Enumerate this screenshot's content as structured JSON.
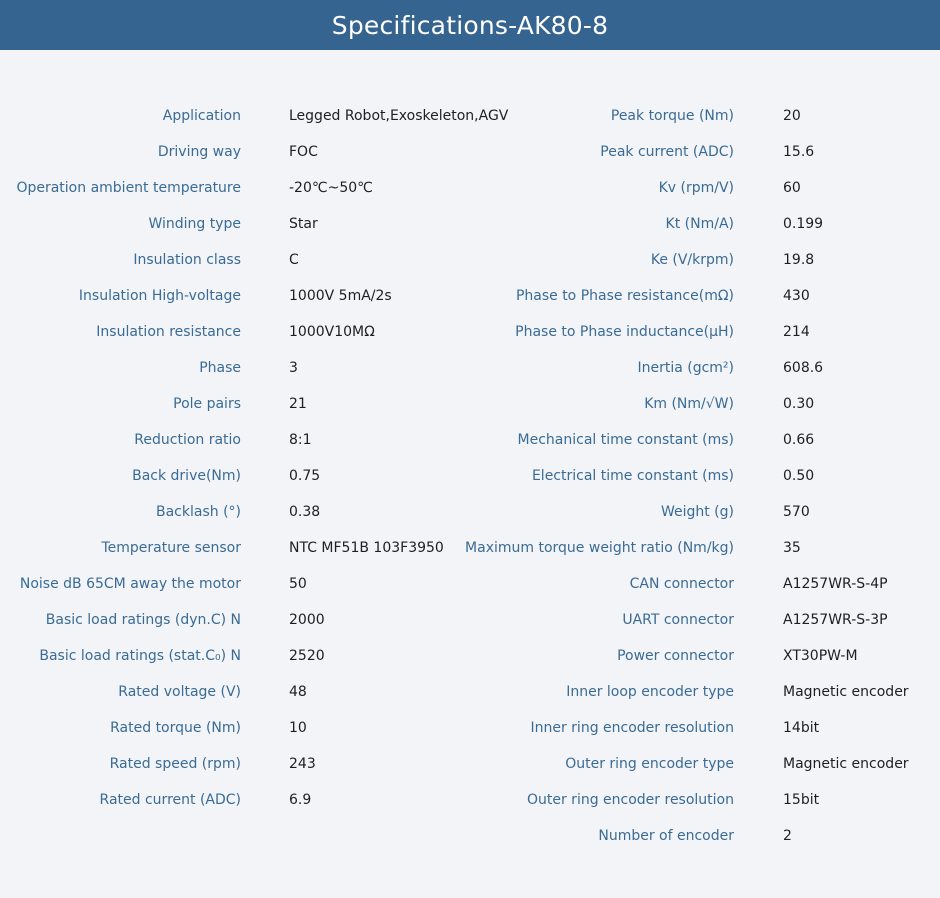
{
  "title": "Specifications-AK80-8",
  "left_specs": [
    {
      "label": "Application",
      "value": "Legged Robot,Exoskeleton,AGV"
    },
    {
      "label": "Driving way",
      "value": "FOC"
    },
    {
      "label": "Operation ambient temperature",
      "value": "-20℃~50℃"
    },
    {
      "label": "Winding type",
      "value": "Star"
    },
    {
      "label": "Insulation class",
      "value": "C"
    },
    {
      "label": "Insulation High-voltage",
      "value": "1000V 5mA/2s"
    },
    {
      "label": "Insulation resistance",
      "value": "1000V10MΩ"
    },
    {
      "label": "Phase",
      "value": "3"
    },
    {
      "label": "Pole pairs",
      "value": "21"
    },
    {
      "label": "Reduction ratio",
      "value": "8:1"
    },
    {
      "label": "Back drive(Nm)",
      "value": "0.75"
    },
    {
      "label": "Backlash (°)",
      "value": "0.38"
    },
    {
      "label": "Temperature sensor",
      "value": "NTC MF51B 103F3950"
    },
    {
      "label": "Noise dB 65CM away the motor",
      "value": "50"
    },
    {
      "label": "Basic load ratings (dyn.C) N",
      "value": "2000"
    },
    {
      "label": "Basic load ratings (stat.C₀) N",
      "value": "2520"
    },
    {
      "label": "Rated voltage (V)",
      "value": "48"
    },
    {
      "label": "Rated torque (Nm)",
      "value": "10"
    },
    {
      "label": "Rated speed (rpm)",
      "value": "243"
    },
    {
      "label": "Rated current (ADC)",
      "value": "6.9"
    }
  ],
  "right_specs": [
    {
      "label": "Peak torque (Nm)",
      "value": "20"
    },
    {
      "label": "Peak current (ADC)",
      "value": "15.6"
    },
    {
      "label": "Kv (rpm/V)",
      "value": "60"
    },
    {
      "label": "Kt (Nm/A)",
      "value": "0.199"
    },
    {
      "label": "Ke (V/krpm)",
      "value": "19.8"
    },
    {
      "label": "Phase to Phase resistance(mΩ)",
      "value": "430"
    },
    {
      "label": "Phase to Phase inductance(μH)",
      "value": "214"
    },
    {
      "label": "Inertia (gcm²)",
      "value": "608.6"
    },
    {
      "label": "Km (Nm/√W)",
      "value": "0.30"
    },
    {
      "label": "Mechanical time constant (ms)",
      "value": "0.66"
    },
    {
      "label": "Electrical time constant (ms)",
      "value": "0.50"
    },
    {
      "label": "Weight (g)",
      "value": "570"
    },
    {
      "label": "Maximum torque weight ratio (Nm/kg)",
      "value": "35"
    },
    {
      "label": "CAN connector",
      "value": "A1257WR-S-4P"
    },
    {
      "label": "UART connector",
      "value": "A1257WR-S-3P"
    },
    {
      "label": "Power connector",
      "value": "XT30PW-M"
    },
    {
      "label": "Inner loop encoder type",
      "value": "Magnetic encoder"
    },
    {
      "label": "Inner ring encoder resolution",
      "value": "14bit"
    },
    {
      "label": "Outer ring encoder type",
      "value": "Magnetic encoder"
    },
    {
      "label": "Outer ring encoder resolution",
      "value": "15bit"
    },
    {
      "label": "Number of encoder",
      "value": "2"
    }
  ]
}
